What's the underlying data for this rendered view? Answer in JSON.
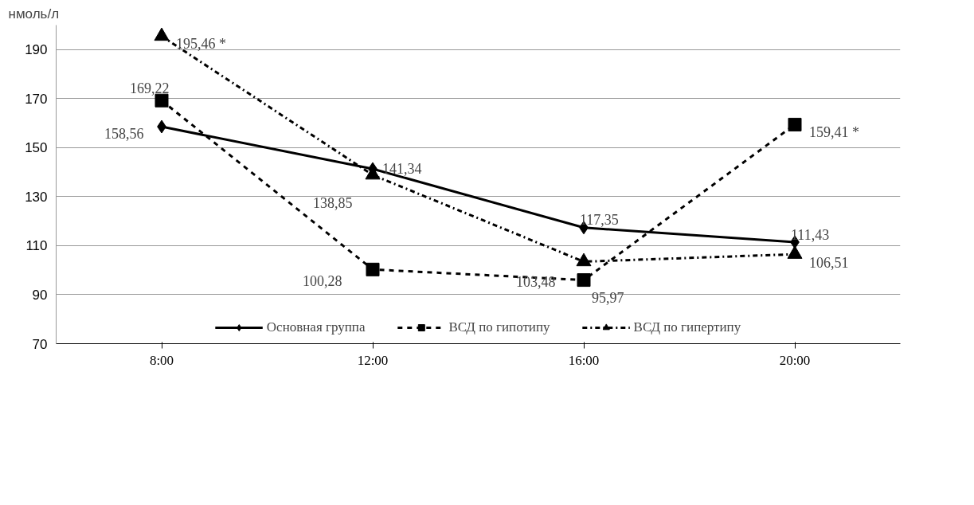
{
  "chart_data": {
    "type": "line",
    "ylabel": "нмоль/л",
    "categories": [
      "8:00",
      "12:00",
      "16:00",
      "20:00"
    ],
    "series": [
      {
        "name": "Основная группа",
        "color": "#000000",
        "marker": "diamond",
        "line_style": "solid",
        "values": [
          158.56,
          141.34,
          117.35,
          111.43
        ],
        "value_labels": [
          "158,56",
          "141,34",
          "117,35",
          "111,43"
        ]
      },
      {
        "name": "ВСД по гипотипу",
        "color": "#000000",
        "marker": "square",
        "line_style": "dashed",
        "values": [
          169.22,
          100.28,
          95.97,
          159.41
        ],
        "value_labels": [
          "169,22",
          "100,28",
          "95,97",
          "159,41 *"
        ]
      },
      {
        "name": "ВСД по гипертипу",
        "color": "#000000",
        "marker": "triangle",
        "line_style": "dashdot",
        "values": [
          195.46,
          138.85,
          103.48,
          106.51
        ],
        "value_labels": [
          "195,46 *",
          "138,85",
          "103,48",
          "106,51"
        ]
      }
    ],
    "ylim": [
      70,
      200
    ],
    "yticks": [
      70,
      90,
      110,
      130,
      150,
      170,
      190
    ],
    "grid": "y",
    "legend": "bottom"
  }
}
